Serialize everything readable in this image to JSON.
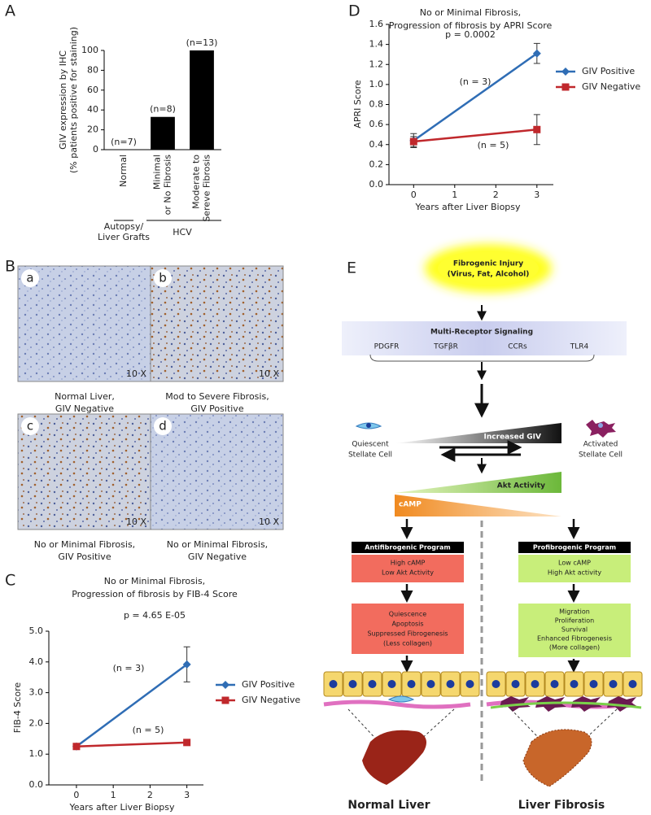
{
  "panel_letters": [
    "A",
    "B",
    "C",
    "D",
    "E"
  ],
  "chart_data": [
    {
      "type": "bar",
      "ylabel": [
        "GIV expression by IHC",
        "(% patients positive for staining)"
      ],
      "categories": [
        [
          "Normal"
        ],
        [
          "Minimal",
          "or No Fibrosis"
        ],
        [
          "Moderate to",
          "Sereve Fibrosis"
        ]
      ],
      "values": [
        0,
        33,
        100
      ],
      "color": "#000000",
      "annotations": [
        "(n=7)",
        "(n=8)",
        "(n=13)"
      ],
      "group_labels": [
        [
          "Autopsy/",
          "Liver Grafts"
        ],
        [
          "HCV"
        ]
      ],
      "ylim": [
        0,
        100
      ],
      "yticks": [
        0,
        20,
        40,
        60,
        80,
        100
      ]
    },
    {
      "type": "line",
      "title": [
        "No or Minimal Fibrosis,",
        "Progression of fibrosis by FIB-4 Score"
      ],
      "annotations": [
        "p = 4.65 E-05",
        "(n = 3)",
        "(n = 5)"
      ],
      "xlabel": "Years after Liver Biopsy",
      "ylabel": "FIB-4 Score",
      "x": [
        0,
        3
      ],
      "series": [
        {
          "name": "GIV Positive",
          "color": "#2f6db5",
          "marker": "diamond",
          "values": [
            1.25,
            3.92
          ],
          "errors": [
            0.1,
            0.57
          ]
        },
        {
          "name": "GIV Negative",
          "color": "#c0282c",
          "marker": "square",
          "values": [
            1.25,
            1.38
          ],
          "errors": [
            0.05,
            0.04
          ]
        }
      ],
      "xlim": [
        -0.75,
        3.45
      ],
      "xticks": [
        0,
        1,
        2,
        3
      ],
      "ylim": [
        0,
        5
      ],
      "yticks": [
        {
          "value": 0,
          "label": "0.0"
        },
        {
          "value": 1,
          "label": "1.0"
        },
        {
          "value": 2,
          "label": "2.0"
        },
        {
          "value": 3,
          "label": "3.0"
        },
        {
          "value": 4,
          "label": "4.0"
        },
        {
          "value": 5,
          "label": "5.0"
        }
      ],
      "legend": "right"
    },
    {
      "type": "line",
      "title": [
        "No or Minimal Fibrosis,",
        "Progression of fibrosis by APRI Score"
      ],
      "annotations": [
        "p = 0.0002",
        "(n = 3)",
        "(n = 5)"
      ],
      "xlabel": "Years after Liver Biopsy",
      "ylabel": "APRI Score",
      "x": [
        0,
        3
      ],
      "series": [
        {
          "name": "GIV Positive",
          "color": "#2f6db5",
          "marker": "diamond",
          "values": [
            0.44,
            1.31
          ],
          "errors": [
            0.07,
            0.1
          ]
        },
        {
          "name": "GIV Negative",
          "color": "#c0282c",
          "marker": "square",
          "values": [
            0.43,
            0.55
          ],
          "errors": [
            0.05,
            0.15
          ]
        }
      ],
      "xlim": [
        -0.6,
        3.4
      ],
      "xticks": [
        0,
        1,
        2,
        3
      ],
      "ylim": [
        0,
        1.6
      ],
      "yticks": [
        {
          "value": 0,
          "label": "0.0"
        },
        {
          "value": 0.2,
          "label": "0.2"
        },
        {
          "value": 0.4,
          "label": "0.4"
        },
        {
          "value": 0.6,
          "label": "0.6"
        },
        {
          "value": 0.8,
          "label": "0.8"
        },
        {
          "value": 1,
          "label": "1.0"
        },
        {
          "value": 1.2,
          "label": "1.2"
        },
        {
          "value": 1.4,
          "label": "1.4"
        },
        {
          "value": 1.6,
          "label": "1.6"
        }
      ],
      "legend": "right"
    }
  ],
  "micrographs": [
    {
      "letter": "a",
      "magnification": "10 X",
      "caption": [
        "Normal Liver,",
        "GIV Negative"
      ]
    },
    {
      "letter": "b",
      "magnification": "10 X",
      "caption": [
        "Mod to Severe Fibrosis,",
        "GIV Positive"
      ]
    },
    {
      "letter": "c",
      "magnification": "10 X",
      "caption": [
        "No or Minimal Fibrosis,",
        "GIV Positive"
      ]
    },
    {
      "letter": "d",
      "magnification": "10 X",
      "caption": [
        "No or Minimal Fibrosis,",
        "GIV Negative"
      ]
    }
  ],
  "diagram": {
    "injury": [
      "Fibrogenic Injury",
      "(Virus, Fat, Alcohol)"
    ],
    "signaling": {
      "title": "Multi-Receptor Signaling",
      "receptors": [
        "PDGFR",
        "TGFβR",
        "CCRs",
        "TLR4"
      ]
    },
    "giv": "Increased GIV",
    "quiescent": [
      "Quiescent",
      "Stellate Cell"
    ],
    "activated": [
      "Activated",
      "Stellate Cell"
    ],
    "akt": "Akt Activity",
    "camp": "cAMP",
    "left": {
      "header": "Antifibrogenic Program",
      "state": [
        "High cAMP",
        "Low Akt Activity"
      ],
      "outcome": [
        "Quiescence",
        "Apoptosis",
        "Suppressed Fibrogenesis",
        "(Less collagen)"
      ],
      "footer": "Normal Liver"
    },
    "right": {
      "header": "Profibrogenic Program",
      "state": [
        "Low cAMP",
        "High Akt activity"
      ],
      "outcome": [
        "Migration",
        "Proliferation",
        "Survival",
        "Enhanced Fibrogenesis",
        "(More collagen)"
      ],
      "footer": "Liver Fibrosis"
    }
  }
}
